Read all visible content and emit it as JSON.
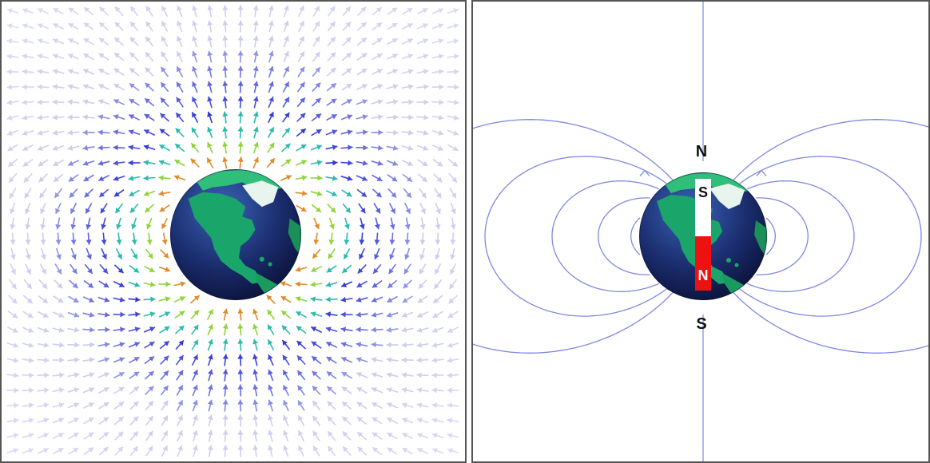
{
  "left_diagram": {
    "arrow_colors": {
      "far": "#b9bce8",
      "mid": "#2f37d6",
      "near": "#1fb8a8",
      "closest": "#8fd43a",
      "pole": "#e08a2a"
    }
  },
  "right_diagram": {
    "north_pole_label": "N",
    "south_pole_label": "S",
    "magnet_top_label": "S",
    "magnet_bottom_label": "N",
    "field_line_color": "#8088e0",
    "magnet_colors": {
      "top": "#ffffff",
      "bottom": "#ee1111"
    }
  },
  "earth": {
    "ocean_colors": [
      "#3a63b8",
      "#1a2c6c",
      "#0b1238"
    ],
    "land_color": "#1aa56a",
    "icon": "globe-north-america"
  }
}
